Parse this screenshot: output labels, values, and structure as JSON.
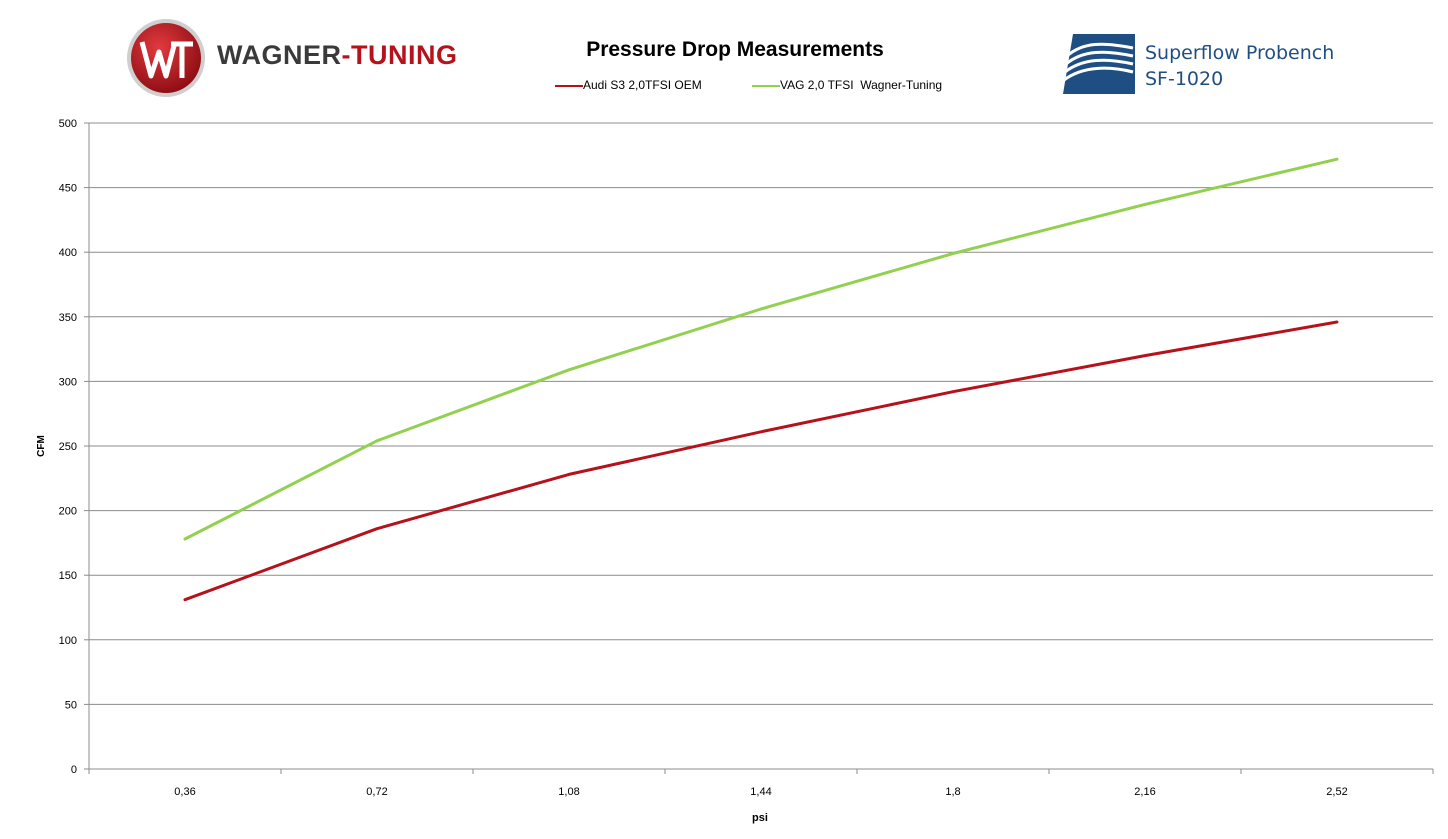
{
  "header": {
    "brand_left_part1": "WAGNER",
    "brand_left_part2": "-TUNING",
    "brand_right_line1": "Superflow Probench",
    "brand_right_line2": "SF-1020"
  },
  "colors": {
    "oem": "#b5121b",
    "wagner": "#92d050",
    "grid": "#8c8c8c",
    "brand_red": "#b5121b",
    "brand_blue": "#1f4f82"
  },
  "icons": {
    "left_logo": "wagner-tuning-logo-icon",
    "right_logo": "superflow-logo-icon"
  },
  "chart_data": {
    "type": "line",
    "title": "Pressure Drop Measurements",
    "xlabel": "psi",
    "ylabel": "CFM",
    "categories": [
      "0,36",
      "0,72",
      "1,08",
      "1,44",
      "1,8",
      "2,16",
      "2,52"
    ],
    "ylim": [
      0,
      500
    ],
    "yticks": [
      "0",
      "50",
      "100",
      "150",
      "200",
      "250",
      "300",
      "350",
      "400",
      "450",
      "500"
    ],
    "grid": true,
    "legend_position": "top-center",
    "series": [
      {
        "name": "Audi S3 2,0TFSI OEM",
        "color": "#b5121b",
        "values": [
          131,
          186,
          228,
          261,
          292,
          320,
          346
        ]
      },
      {
        "name": "VAG 2,0 TFSI  Wagner-Tuning",
        "color": "#92d050",
        "values": [
          178,
          254,
          309,
          356,
          399,
          437,
          472
        ]
      }
    ]
  }
}
